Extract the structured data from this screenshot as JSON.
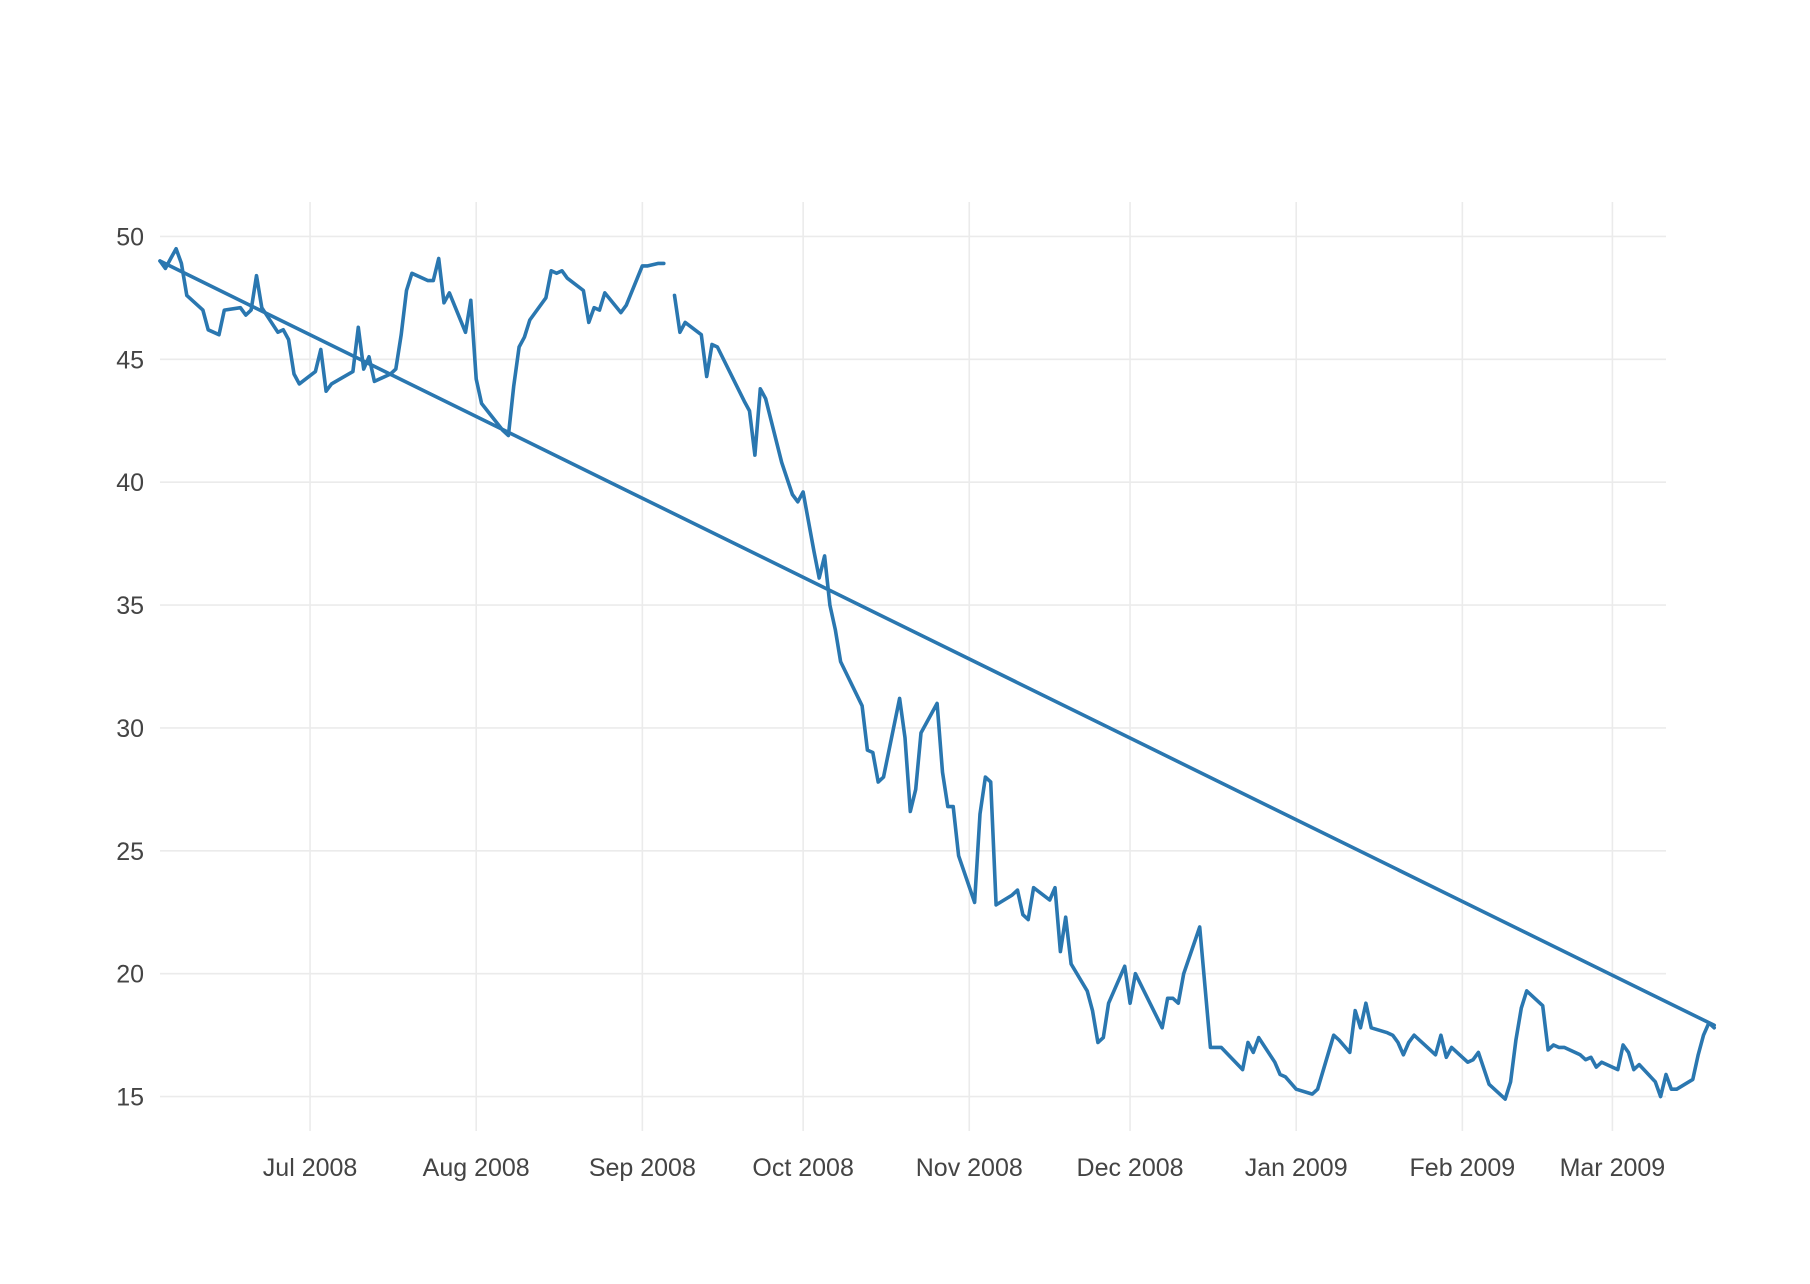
{
  "chart_data": {
    "type": "line",
    "title": "",
    "xlabel": "",
    "ylabel": "",
    "grid": true,
    "legend": "none",
    "color": "#2a77b0",
    "background": "#ffffff",
    "gridcolor": "#ebebeb",
    "xlim": [
      "2008-06-03",
      "2009-03-11"
    ],
    "ylim": [
      13.6,
      51.4
    ],
    "x_ticks": [
      {
        "date": "2008-07-01",
        "label": "Jul 2008"
      },
      {
        "date": "2008-08-01",
        "label": "Aug 2008"
      },
      {
        "date": "2008-09-01",
        "label": "Sep 2008"
      },
      {
        "date": "2008-10-01",
        "label": "Oct 2008"
      },
      {
        "date": "2008-11-01",
        "label": "Nov 2008"
      },
      {
        "date": "2008-12-01",
        "label": "Dec 2008"
      },
      {
        "date": "2009-01-01",
        "label": "Jan 2009"
      },
      {
        "date": "2009-02-01",
        "label": "Feb 2009"
      },
      {
        "date": "2009-03-01",
        "label": "Mar 2009"
      }
    ],
    "y_ticks": [
      15,
      20,
      25,
      30,
      35,
      40,
      45,
      50
    ],
    "series": [
      {
        "kind": "price",
        "segments": [
          [
            [
              "2008-06-03",
              49.0
            ],
            [
              "2008-06-04",
              48.7
            ],
            [
              "2008-06-05",
              49.1
            ],
            [
              "2008-06-06",
              49.5
            ],
            [
              "2008-06-07",
              48.9
            ],
            [
              "2008-06-08",
              47.6
            ],
            [
              "2008-06-11",
              47.0
            ],
            [
              "2008-06-12",
              46.2
            ],
            [
              "2008-06-14",
              46.0
            ],
            [
              "2008-06-15",
              47.0
            ],
            [
              "2008-06-18",
              47.1
            ],
            [
              "2008-06-19",
              46.8
            ],
            [
              "2008-06-20",
              47.0
            ],
            [
              "2008-06-21",
              48.4
            ],
            [
              "2008-06-22",
              47.1
            ],
            [
              "2008-06-25",
              46.1
            ],
            [
              "2008-06-26",
              46.2
            ],
            [
              "2008-06-27",
              45.8
            ],
            [
              "2008-06-28",
              44.4
            ],
            [
              "2008-06-29",
              44.0
            ],
            [
              "2008-07-02",
              44.5
            ],
            [
              "2008-07-03",
              45.4
            ],
            [
              "2008-07-04",
              43.7
            ],
            [
              "2008-07-05",
              44.0
            ],
            [
              "2008-07-09",
              44.5
            ],
            [
              "2008-07-10",
              46.3
            ],
            [
              "2008-07-11",
              44.6
            ],
            [
              "2008-07-12",
              45.1
            ],
            [
              "2008-07-13",
              44.1
            ],
            [
              "2008-07-16",
              44.4
            ],
            [
              "2008-07-17",
              44.6
            ],
            [
              "2008-07-18",
              46.0
            ],
            [
              "2008-07-19",
              47.8
            ],
            [
              "2008-07-20",
              48.5
            ],
            [
              "2008-07-23",
              48.2
            ],
            [
              "2008-07-24",
              48.2
            ],
            [
              "2008-07-25",
              49.1
            ],
            [
              "2008-07-26",
              47.3
            ],
            [
              "2008-07-27",
              47.7
            ],
            [
              "2008-07-30",
              46.1
            ],
            [
              "2008-07-31",
              47.4
            ],
            [
              "2008-08-01",
              44.2
            ],
            [
              "2008-08-02",
              43.2
            ],
            [
              "2008-08-06",
              42.1
            ],
            [
              "2008-08-07",
              41.9
            ],
            [
              "2008-08-08",
              43.9
            ],
            [
              "2008-08-09",
              45.5
            ],
            [
              "2008-08-10",
              45.9
            ],
            [
              "2008-08-11",
              46.6
            ],
            [
              "2008-08-14",
              47.5
            ],
            [
              "2008-08-15",
              48.6
            ],
            [
              "2008-08-16",
              48.5
            ],
            [
              "2008-08-17",
              48.6
            ],
            [
              "2008-08-18",
              48.3
            ],
            [
              "2008-08-21",
              47.8
            ],
            [
              "2008-08-22",
              46.5
            ],
            [
              "2008-08-23",
              47.1
            ],
            [
              "2008-08-24",
              47.0
            ],
            [
              "2008-08-25",
              47.7
            ],
            [
              "2008-08-28",
              46.9
            ],
            [
              "2008-08-29",
              47.2
            ],
            [
              "2008-09-01",
              48.8
            ],
            [
              "2008-09-02",
              48.8
            ],
            [
              "2008-09-04",
              48.9
            ],
            [
              "2008-09-05",
              48.9
            ]
          ],
          [
            [
              "2008-09-07",
              47.6
            ],
            [
              "2008-09-08",
              46.1
            ],
            [
              "2008-09-09",
              46.5
            ],
            [
              "2008-09-12",
              46.0
            ],
            [
              "2008-09-13",
              44.3
            ],
            [
              "2008-09-14",
              45.6
            ],
            [
              "2008-09-15",
              45.5
            ],
            [
              "2008-09-20",
              43.3
            ],
            [
              "2008-09-21",
              42.9
            ],
            [
              "2008-09-22",
              41.1
            ],
            [
              "2008-09-23",
              43.8
            ],
            [
              "2008-09-24",
              43.4
            ],
            [
              "2008-09-27",
              40.8
            ],
            [
              "2008-09-29",
              39.5
            ],
            [
              "2008-09-30",
              39.2
            ],
            [
              "2008-10-01",
              39.6
            ],
            [
              "2008-10-03",
              37.2
            ],
            [
              "2008-10-04",
              36.1
            ],
            [
              "2008-10-05",
              37.0
            ],
            [
              "2008-10-06",
              35.0
            ],
            [
              "2008-10-07",
              34.0
            ],
            [
              "2008-10-08",
              32.7
            ],
            [
              "2008-10-12",
              30.9
            ],
            [
              "2008-10-13",
              29.1
            ],
            [
              "2008-10-14",
              29.0
            ],
            [
              "2008-10-15",
              27.8
            ],
            [
              "2008-10-16",
              28.0
            ],
            [
              "2008-10-19",
              31.2
            ],
            [
              "2008-10-20",
              29.6
            ],
            [
              "2008-10-21",
              26.6
            ],
            [
              "2008-10-22",
              27.5
            ],
            [
              "2008-10-23",
              29.8
            ],
            [
              "2008-10-26",
              31.0
            ],
            [
              "2008-10-27",
              28.2
            ],
            [
              "2008-10-28",
              26.8
            ],
            [
              "2008-10-29",
              26.8
            ],
            [
              "2008-10-30",
              24.8
            ],
            [
              "2008-11-02",
              22.9
            ],
            [
              "2008-11-03",
              26.5
            ],
            [
              "2008-11-04",
              28.0
            ],
            [
              "2008-11-05",
              27.8
            ],
            [
              "2008-11-06",
              22.8
            ],
            [
              "2008-11-09",
              23.2
            ],
            [
              "2008-11-10",
              23.4
            ],
            [
              "2008-11-11",
              22.4
            ],
            [
              "2008-11-12",
              22.2
            ],
            [
              "2008-11-13",
              23.5
            ],
            [
              "2008-11-16",
              23.0
            ],
            [
              "2008-11-17",
              23.5
            ],
            [
              "2008-11-18",
              20.9
            ],
            [
              "2008-11-19",
              22.3
            ],
            [
              "2008-11-20",
              20.4
            ],
            [
              "2008-11-23",
              19.3
            ],
            [
              "2008-11-24",
              18.5
            ],
            [
              "2008-11-25",
              17.2
            ],
            [
              "2008-11-26",
              17.4
            ],
            [
              "2008-11-27",
              18.8
            ],
            [
              "2008-11-30",
              20.3
            ],
            [
              "2008-12-01",
              18.8
            ],
            [
              "2008-12-02",
              20.0
            ],
            [
              "2008-12-07",
              17.8
            ],
            [
              "2008-12-08",
              19.0
            ],
            [
              "2008-12-09",
              19.0
            ],
            [
              "2008-12-10",
              18.8
            ],
            [
              "2008-12-11",
              20.0
            ],
            [
              "2008-12-14",
              21.9
            ],
            [
              "2008-12-16",
              17.0
            ],
            [
              "2008-12-18",
              17.0
            ],
            [
              "2008-12-22",
              16.1
            ],
            [
              "2008-12-23",
              17.2
            ],
            [
              "2008-12-24",
              16.8
            ],
            [
              "2008-12-25",
              17.4
            ],
            [
              "2008-12-28",
              16.4
            ],
            [
              "2008-12-29",
              15.9
            ],
            [
              "2008-12-30",
              15.8
            ],
            [
              "2009-01-01",
              15.3
            ],
            [
              "2009-01-04",
              15.1
            ],
            [
              "2009-01-05",
              15.3
            ],
            [
              "2009-01-08",
              17.5
            ],
            [
              "2009-01-09",
              17.3
            ],
            [
              "2009-01-11",
              16.8
            ],
            [
              "2009-01-12",
              18.5
            ],
            [
              "2009-01-13",
              17.8
            ],
            [
              "2009-01-14",
              18.8
            ],
            [
              "2009-01-15",
              17.8
            ],
            [
              "2009-01-18",
              17.6
            ],
            [
              "2009-01-19",
              17.5
            ],
            [
              "2009-01-20",
              17.2
            ],
            [
              "2009-01-21",
              16.7
            ],
            [
              "2009-01-22",
              17.2
            ],
            [
              "2009-01-23",
              17.5
            ],
            [
              "2009-01-27",
              16.7
            ],
            [
              "2009-01-28",
              17.5
            ],
            [
              "2009-01-29",
              16.6
            ],
            [
              "2009-01-30",
              17.0
            ],
            [
              "2009-02-02",
              16.4
            ],
            [
              "2009-02-03",
              16.5
            ],
            [
              "2009-02-04",
              16.8
            ],
            [
              "2009-02-06",
              15.5
            ],
            [
              "2009-02-09",
              14.9
            ],
            [
              "2009-02-10",
              15.6
            ],
            [
              "2009-02-11",
              17.3
            ],
            [
              "2009-02-12",
              18.6
            ],
            [
              "2009-02-13",
              19.3
            ],
            [
              "2009-02-16",
              18.7
            ],
            [
              "2009-02-17",
              16.9
            ],
            [
              "2009-02-18",
              17.1
            ],
            [
              "2009-02-19",
              17.0
            ],
            [
              "2009-02-20",
              17.0
            ],
            [
              "2009-02-23",
              16.7
            ],
            [
              "2009-02-24",
              16.5
            ],
            [
              "2009-02-25",
              16.6
            ],
            [
              "2009-02-26",
              16.2
            ],
            [
              "2009-02-27",
              16.4
            ],
            [
              "2009-03-02",
              16.1
            ],
            [
              "2009-03-03",
              17.1
            ],
            [
              "2009-03-04",
              16.8
            ],
            [
              "2009-03-05",
              16.1
            ],
            [
              "2009-03-06",
              16.3
            ],
            [
              "2009-03-09",
              15.6
            ],
            [
              "2009-03-10",
              15.0
            ],
            [
              "2009-03-11",
              15.9
            ],
            [
              "2009-03-12",
              15.3
            ],
            [
              "2009-03-13",
              15.3
            ],
            [
              "2009-03-16",
              15.7
            ],
            [
              "2009-03-17",
              16.7
            ],
            [
              "2009-03-18",
              17.5
            ],
            [
              "2009-03-19",
              18.0
            ],
            [
              "2009-03-20",
              17.8
            ]
          ]
        ]
      },
      {
        "kind": "trend",
        "segments": [
          [
            [
              "2008-06-03",
              49.0
            ],
            [
              "2009-03-20",
              17.9
            ]
          ]
        ]
      }
    ]
  }
}
